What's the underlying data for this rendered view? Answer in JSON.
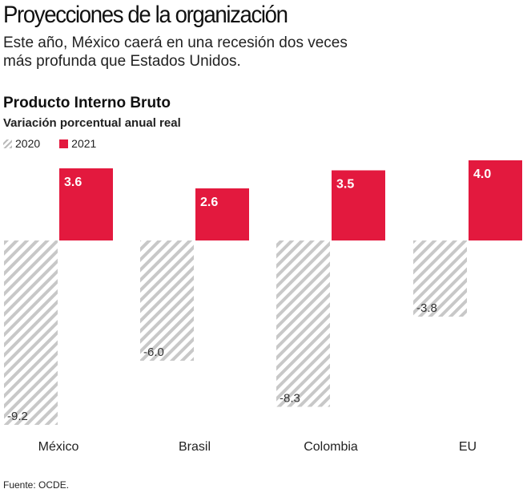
{
  "title": "Proyecciones de la organización",
  "subtitle": "Este año, México caerá en una recesión dos veces más profunda que Estados Unidos.",
  "source": "Fuente: OCDE.",
  "colors": {
    "2021": "#e3193e",
    "2020": "#c8c8c8"
  },
  "chart_data": {
    "type": "bar",
    "title": "Producto Interno Bruto",
    "subtitle": "Variación porcentual anual real",
    "categories": [
      "México",
      "Brasil",
      "Colombia",
      "EU"
    ],
    "series": [
      {
        "name": "2020",
        "values": [
          -9.2,
          -6.0,
          -8.3,
          -3.8
        ],
        "labels": [
          "-9.2",
          "-6.0",
          "-8.3",
          "-3.8"
        ],
        "style": "hatched gray"
      },
      {
        "name": "2021",
        "values": [
          3.6,
          2.6,
          3.5,
          4.0
        ],
        "labels": [
          "3.6",
          "2.6",
          "3.5",
          "4.0"
        ],
        "style": "solid red"
      }
    ],
    "grid": false,
    "legend": "top-left"
  }
}
